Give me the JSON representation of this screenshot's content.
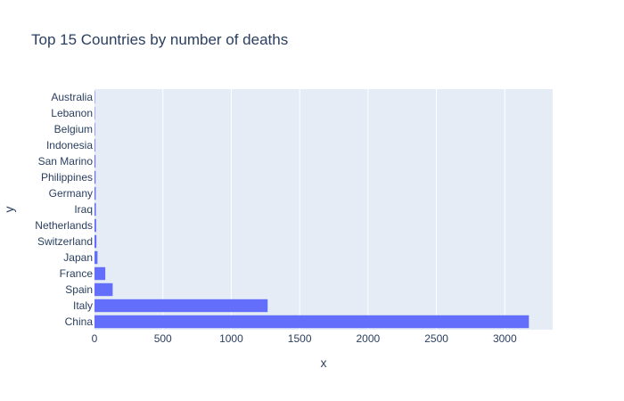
{
  "chart_data": {
    "type": "bar",
    "orientation": "horizontal",
    "title": "Top 15 Countries by number of deaths",
    "xlabel": "x",
    "ylabel": "y",
    "xlim": [
      0,
      3350
    ],
    "xticks": [
      0,
      500,
      1000,
      1500,
      2000,
      2500,
      3000
    ],
    "grid": true,
    "legend": "none",
    "colors": {
      "plot_bg": "#e5ecf6",
      "bar": "#636efa",
      "grid": "#ffffff",
      "text": "#2a3f5f"
    },
    "categories": [
      "China",
      "Italy",
      "Spain",
      "France",
      "Japan",
      "Switzerland",
      "Netherlands",
      "Iraq",
      "Germany",
      "Philippines",
      "San Marino",
      "Indonesia",
      "Belgium",
      "Lebanon",
      "Australia"
    ],
    "values": [
      3176,
      1266,
      133,
      79,
      22,
      14,
      12,
      10,
      9,
      8,
      7,
      5,
      4,
      3,
      3
    ]
  }
}
